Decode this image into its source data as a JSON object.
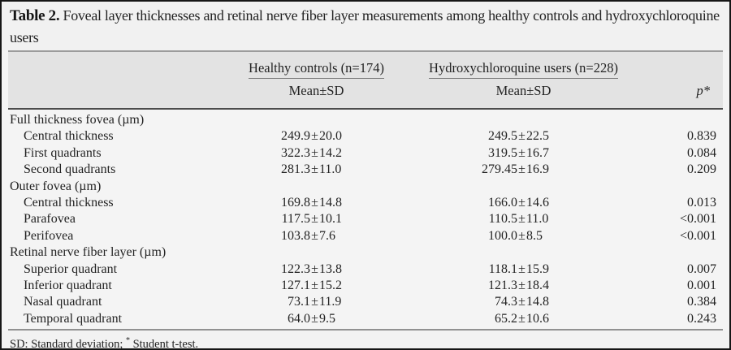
{
  "title": {
    "label": "Table 2.",
    "text": " Foveal layer thicknesses and retinal nerve fiber layer measurements among healthy controls and hydroxychloroquine users"
  },
  "symbols": {
    "pm": "±"
  },
  "header": {
    "group_healthy": "Healthy controls (n=174)",
    "group_hcq": "Hydroxychloroquine users (n=228)",
    "sub_healthy": "Mean±SD",
    "sub_hcq": "Mean±SD",
    "p_label": "p*"
  },
  "rows": [
    {
      "type": "section",
      "label": "Full thickness fovea (µm)"
    },
    {
      "type": "data",
      "label": "Central thickness",
      "healthy_mean": "249.9",
      "healthy_sd": "20.0",
      "hcq_mean": "249.5",
      "hcq_sd": "22.5",
      "p": "0.839"
    },
    {
      "type": "data",
      "label": "First quadrants",
      "healthy_mean": "322.3",
      "healthy_sd": "14.2",
      "hcq_mean": "319.5",
      "hcq_sd": "16.7",
      "p": "0.084"
    },
    {
      "type": "data",
      "label": "Second quadrants",
      "healthy_mean": "281.3",
      "healthy_sd": "11.0",
      "hcq_mean": "279.45",
      "hcq_sd": "16.9",
      "p": "0.209"
    },
    {
      "type": "section",
      "label": "Outer fovea (µm)"
    },
    {
      "type": "data",
      "label": "Central thickness",
      "healthy_mean": "169.8",
      "healthy_sd": "14.8",
      "hcq_mean": "166.0",
      "hcq_sd": "14.6",
      "p": "0.013"
    },
    {
      "type": "data",
      "label": "Parafovea",
      "healthy_mean": "117.5",
      "healthy_sd": "10.1",
      "hcq_mean": "110.5",
      "hcq_sd": "11.0",
      "p": "<0.001"
    },
    {
      "type": "data",
      "label": "Perifovea",
      "healthy_mean": "103.8",
      "healthy_sd": "7.6",
      "hcq_mean": "100.0",
      "hcq_sd": "8.5",
      "p": "<0.001"
    },
    {
      "type": "section",
      "label": "Retinal nerve fiber layer (µm)"
    },
    {
      "type": "data",
      "label": "Superior quadrant",
      "healthy_mean": "122.3",
      "healthy_sd": "13.8",
      "hcq_mean": "118.1",
      "hcq_sd": "15.9",
      "p": "0.007"
    },
    {
      "type": "data",
      "label": "Inferior quadrant",
      "healthy_mean": "127.1",
      "healthy_sd": "15.2",
      "hcq_mean": "121.3",
      "hcq_sd": "18.4",
      "p": "0.001"
    },
    {
      "type": "data",
      "label": "Nasal quadrant",
      "healthy_mean": "73.1",
      "healthy_sd": "11.9",
      "hcq_mean": "74.3",
      "hcq_sd": "14.8",
      "p": "0.384"
    },
    {
      "type": "data",
      "label": "Temporal quadrant",
      "healthy_mean": "64.0",
      "healthy_sd": "9.5",
      "hcq_mean": "65.2",
      "hcq_sd": "10.6",
      "p": "0.243"
    }
  ],
  "footnote": {
    "part1": "SD: Standard deviation; ",
    "star": "*",
    "part2": " Student t-test."
  },
  "colors": {
    "outer_border": "#161616",
    "title_bg": "#f1f1f1",
    "header_band_bg": "#e3e3e3",
    "body_bg": "#f4f4f4",
    "rule_light": "#9c9c9c",
    "rule_dark": "#4c4c4c",
    "text": "#232323"
  }
}
